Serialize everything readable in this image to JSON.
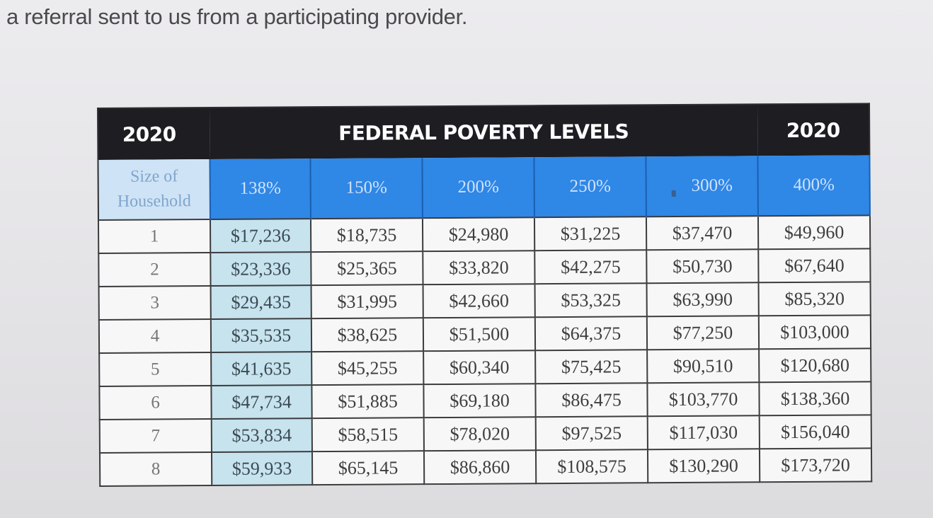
{
  "intro_text": "a referral sent to us from a participating provider.",
  "table": {
    "title_left_year": "2020",
    "title": "FEDERAL POVERTY LEVELS",
    "title_right_year": "2020",
    "household_header_line1": "Size of",
    "household_header_line2": "Household",
    "columns": [
      "138%",
      "150%",
      "200%",
      "250%",
      "300%",
      "400%"
    ],
    "rows": [
      {
        "size": "1",
        "values": [
          "$17,236",
          "$18,735",
          "$24,980",
          "$31,225",
          "$37,470",
          "$49,960"
        ]
      },
      {
        "size": "2",
        "values": [
          "$23,336",
          "$25,365",
          "$33,820",
          "$42,275",
          "$50,730",
          "$67,640"
        ]
      },
      {
        "size": "3",
        "values": [
          "$29,435",
          "$31,995",
          "$42,660",
          "$53,325",
          "$63,990",
          "$85,320"
        ]
      },
      {
        "size": "4",
        "values": [
          "$35,535",
          "$38,625",
          "$51,500",
          "$64,375",
          "$77,250",
          "$103,000"
        ]
      },
      {
        "size": "5",
        "values": [
          "$41,635",
          "$45,255",
          "$60,340",
          "$75,425",
          "$90,510",
          "$120,680"
        ]
      },
      {
        "size": "6",
        "values": [
          "$47,734",
          "$51,885",
          "$69,180",
          "$86,475",
          "$103,770",
          "$138,360"
        ]
      },
      {
        "size": "7",
        "values": [
          "$53,834",
          "$58,515",
          "$78,020",
          "$97,525",
          "$117,030",
          "$156,040"
        ]
      },
      {
        "size": "8",
        "values": [
          "$59,933",
          "$65,145",
          "$86,860",
          "$108,575",
          "$130,290",
          "$173,720"
        ]
      }
    ]
  },
  "colors": {
    "title_bar": "#1e1d22",
    "header_blue": "#2f87e6",
    "highlight_column": "#c6e3ee"
  }
}
